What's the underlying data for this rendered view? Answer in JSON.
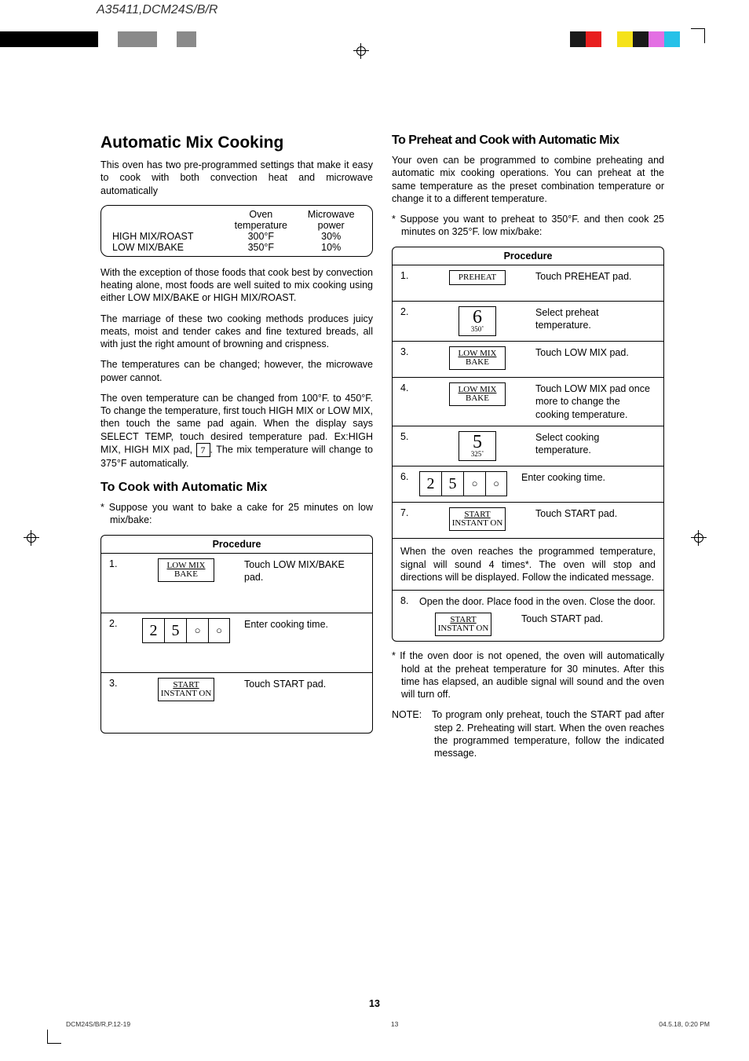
{
  "header_code": "A35411,DCM24S/B/R",
  "colorbar_left": [
    "#000000",
    "#000000",
    "#000000",
    "#000000",
    "#000000",
    "#ffffff",
    "#8a8a8a",
    "#8a8a8a",
    "#ffffff",
    "#8a8a8a"
  ],
  "colorbar_right": [
    "#1a1a1a",
    "#e81f1f",
    "#ffffff",
    "#f5e21a",
    "#1a1a1a",
    "#e36fe3",
    "#26c1e8",
    "#ffffff",
    "#ffffff"
  ],
  "left": {
    "h1": "Automatic Mix Cooking",
    "intro": "This oven has two pre-programmed settings that make it easy to cook with both convection heat and microwave automatically",
    "table": {
      "cols": [
        "",
        "Oven temperature",
        "Microwave power"
      ],
      "rows": [
        [
          "HIGH MIX/ROAST",
          "300°F",
          "30%"
        ],
        [
          "LOW MIX/BAKE",
          "350°F",
          "10%"
        ]
      ]
    },
    "p1": "With the exception of those foods that cook best by convection heating alone, most foods are well suited to mix cooking using either LOW MIX/BAKE or HIGH MIX/ROAST.",
    "p2": "The marriage of these two cooking methods produces juicy meats, moist and tender cakes and fine textured breads, all with just the right amount of browning and crispness.",
    "p3": "The temperatures can be changed; however, the microwave power cannot.",
    "p4a": "The oven temperature can be changed from 100°F. to 450°F. To change the temperature, first touch HIGH MIX or LOW MIX, then touch the same pad again. When the display says SELECT TEMP, touch desired temperature pad. Ex:HIGH MIX, HIGH MIX pad, ",
    "p4_key": "7",
    "p4b": ". The mix temperature will change to 375°F automatically.",
    "h2": "To Cook with Automatic Mix",
    "example": "* Suppose you want to bake a cake for 25 minutes on low mix/bake:",
    "procedure_title": "Procedure",
    "steps": [
      {
        "n": "1.",
        "key_type": "lowmix",
        "desc": "Touch LOW MIX/BAKE pad."
      },
      {
        "n": "2.",
        "key_type": "digits",
        "digits": [
          "2",
          "5",
          "0",
          "0"
        ],
        "desc": "Enter cooking time."
      },
      {
        "n": "3.",
        "key_type": "start",
        "desc": "Touch START pad."
      }
    ]
  },
  "right": {
    "h2": "To Preheat and Cook with Automatic Mix",
    "intro": "Your oven can be programmed to combine preheating and automatic mix cooking operations. You can preheat at the same temperature as the preset combination temperature or change it to a different temperature.",
    "example": "* Suppose you want to preheat to 350°F. and then cook 25 minutes on 325°F. low mix/bake:",
    "procedure_title": "Procedure",
    "steps": [
      {
        "n": "1.",
        "key_type": "preheat",
        "desc": "Touch PREHEAT pad."
      },
      {
        "n": "2.",
        "key_type": "numtemp",
        "num": "6",
        "temp": "350˚",
        "desc": "Select preheat temperature."
      },
      {
        "n": "3.",
        "key_type": "lowmix",
        "desc": "Touch LOW MIX pad."
      },
      {
        "n": "4.",
        "key_type": "lowmix",
        "desc": "Touch LOW MIX pad once more to change the cooking temperature."
      },
      {
        "n": "5.",
        "key_type": "numtemp",
        "num": "5",
        "temp": "325˚",
        "desc": "Select cooking temperature."
      },
      {
        "n": "6.",
        "key_type": "digits",
        "digits": [
          "2",
          "5",
          "0",
          "0"
        ],
        "desc": "Enter cooking time."
      },
      {
        "n": "7.",
        "key_type": "start",
        "desc": "Touch START pad."
      }
    ],
    "midnote": "When the oven reaches the programmed temperature, signal will sound 4 times*. The oven will stop and directions will be displayed. Follow the indicated message.",
    "step8_n": "8.",
    "step8_text": "Open the door. Place food in the oven. Close the door.",
    "step8_desc": "Touch START pad.",
    "footnote": "* If the oven door is not opened, the oven will automatically hold at the preheat temperature for 30 minutes. After this time has elapsed, an audible signal will sound and the oven will turn off.",
    "note_label": "NOTE:",
    "note": "To program only preheat, touch the START pad after step 2. Preheating will start. When the oven reaches the programmed temperature, follow the indicated message."
  },
  "keys": {
    "lowmix_l1": "LOW MIX",
    "lowmix_l2": "BAKE",
    "start_l1": "START",
    "start_l2": "INSTANT ON",
    "preheat": "PREHEAT"
  },
  "page_number": "13",
  "footer": {
    "left": "DCM24S/B/R,P.12-19",
    "mid": "13",
    "right": "04.5.18, 0:20 PM"
  }
}
